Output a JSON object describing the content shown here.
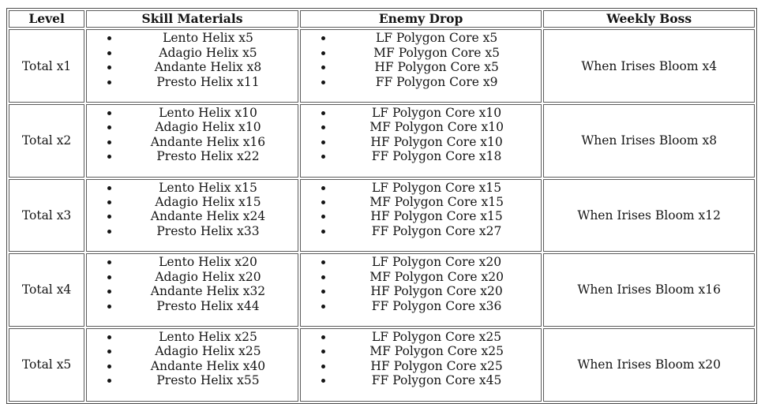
{
  "table": {
    "headers": [
      "Level",
      "Skill Materials",
      "Enemy Drop",
      "Weekly Boss"
    ],
    "rows": [
      {
        "level": "Total x1",
        "skill_materials": [
          "Lento Helix x5",
          "Adagio Helix x5",
          "Andante Helix x8",
          "Presto Helix x11"
        ],
        "enemy_drop": [
          "LF Polygon Core x5",
          "MF Polygon Core x5",
          "HF Polygon Core x5",
          "FF Polygon Core x9"
        ],
        "weekly_boss": "When Irises Bloom x4"
      },
      {
        "level": "Total x2",
        "skill_materials": [
          "Lento Helix x10",
          "Adagio Helix x10",
          "Andante Helix x16",
          "Presto Helix x22"
        ],
        "enemy_drop": [
          "LF Polygon Core x10",
          "MF Polygon Core x10",
          "HF Polygon Core x10",
          "FF Polygon Core x18"
        ],
        "weekly_boss": "When Irises Bloom x8"
      },
      {
        "level": "Total x3",
        "skill_materials": [
          "Lento Helix x15",
          "Adagio Helix x15",
          "Andante Helix x24",
          "Presto Helix x33"
        ],
        "enemy_drop": [
          "LF Polygon Core x15",
          "MF Polygon Core x15",
          "HF Polygon Core x15",
          "FF Polygon Core x27"
        ],
        "weekly_boss": "When Irises Bloom x12"
      },
      {
        "level": "Total x4",
        "skill_materials": [
          "Lento Helix x20",
          "Adagio Helix x20",
          "Andante Helix x32",
          "Presto Helix x44"
        ],
        "enemy_drop": [
          "LF Polygon Core x20",
          "MF Polygon Core x20",
          "HF Polygon Core x20",
          "FF Polygon Core x36"
        ],
        "weekly_boss": "When Irises Bloom x16"
      },
      {
        "level": "Total x5",
        "skill_materials": [
          "Lento Helix x25",
          "Adagio Helix x25",
          "Andante Helix x40",
          "Presto Helix x55"
        ],
        "enemy_drop": [
          "LF Polygon Core x25",
          "MF Polygon Core x25",
          "HF Polygon Core x25",
          "FF Polygon Core x45"
        ],
        "weekly_boss": "When Irises Bloom x20"
      }
    ]
  },
  "colors": {
    "background": "#ffffff",
    "text": "#151515",
    "table_border": "#4f4f4f",
    "cell_border": "#5c5c5c"
  }
}
